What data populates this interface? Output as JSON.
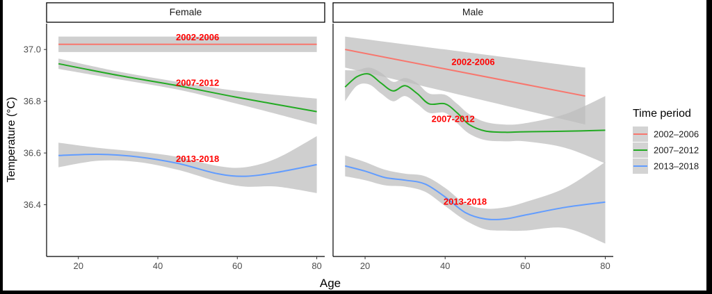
{
  "chart_data": {
    "type": "line",
    "title": "",
    "xlabel": "Age",
    "ylabel": "Temperature (°C)",
    "ylim": [
      36.2,
      37.1
    ],
    "y_ticks": [
      "36.4",
      "36.6",
      "36.8",
      "37.0"
    ],
    "x_ticks": [
      "20",
      "40",
      "60",
      "80"
    ],
    "grid": false,
    "legend": {
      "title": "Time period",
      "placement": "right",
      "entries": [
        {
          "label": "2002–2006",
          "color": "#F8766D"
        },
        {
          "label": "2007–2012",
          "color": "#22AA22"
        },
        {
          "label": "2013–2018",
          "color": "#619CFF"
        }
      ]
    },
    "panels": [
      {
        "strip": "Female",
        "xlim": [
          12,
          82
        ],
        "series": [
          {
            "period": "2002–2006",
            "color": "#F8766D",
            "label": "2002-2006",
            "label_pos": [
              50,
              37.035
            ],
            "x": [
              15,
              80
            ],
            "y": [
              37.02,
              37.02
            ],
            "upper": [
              37.05,
              37.05
            ],
            "lower": [
              36.99,
              36.99
            ]
          },
          {
            "period": "2007–2012",
            "color": "#22AA22",
            "label": "2007-2012",
            "label_pos": [
              50,
              36.86
            ],
            "x": [
              15,
              30,
              45,
              60,
              80
            ],
            "y": [
              36.945,
              36.9,
              36.86,
              36.815,
              36.76
            ],
            "upper": [
              36.965,
              36.915,
              36.875,
              36.84,
              36.81
            ],
            "lower": [
              36.925,
              36.885,
              36.845,
              36.79,
              36.71
            ]
          },
          {
            "period": "2013–2018",
            "color": "#619CFF",
            "label": "2013-2018",
            "label_pos": [
              50,
              36.565
            ],
            "x": [
              15,
              25,
              35,
              45,
              55,
              62,
              70,
              80
            ],
            "y": [
              36.59,
              36.595,
              36.585,
              36.56,
              36.52,
              36.51,
              36.525,
              36.555
            ],
            "upper": [
              36.64,
              36.62,
              36.605,
              36.585,
              36.55,
              36.545,
              36.58,
              36.665
            ],
            "lower": [
              36.545,
              36.57,
              36.565,
              36.535,
              36.49,
              36.47,
              36.47,
              36.445
            ]
          }
        ]
      },
      {
        "strip": "Male",
        "xlim": [
          12,
          82
        ],
        "series": [
          {
            "period": "2002–2006",
            "color": "#F8766D",
            "label": "2002-2006",
            "label_pos": [
              47,
              36.94
            ],
            "x": [
              15,
              75
            ],
            "y": [
              37.0,
              36.82
            ],
            "upper": [
              37.05,
              36.93
            ],
            "lower": [
              36.93,
              36.71
            ]
          },
          {
            "period": "2007–2012",
            "color": "#22AA22",
            "label": "2007-2012",
            "label_pos": [
              42,
              36.72
            ],
            "x": [
              15,
              18,
              21,
              24,
              27,
              30,
              33,
              36,
              40,
              43,
              46,
              50,
              55,
              60,
              70,
              80
            ],
            "y": [
              36.855,
              36.895,
              36.905,
              36.87,
              36.84,
              36.86,
              36.83,
              36.79,
              36.79,
              36.755,
              36.71,
              36.685,
              36.68,
              36.682,
              36.684,
              36.688
            ],
            "upper": [
              36.92,
              36.92,
              36.93,
              36.91,
              36.875,
              36.89,
              36.87,
              36.83,
              36.825,
              36.79,
              36.75,
              36.72,
              36.71,
              36.715,
              36.75,
              36.82
            ],
            "lower": [
              36.8,
              36.86,
              36.865,
              36.83,
              36.8,
              36.82,
              36.79,
              36.755,
              36.755,
              36.715,
              36.675,
              36.65,
              36.645,
              36.645,
              36.62,
              36.56
            ]
          },
          {
            "period": "2013–2018",
            "color": "#619CFF",
            "label": "2013-2018",
            "label_pos": [
              45,
              36.4
            ],
            "x": [
              15,
              20,
              25,
              30,
              35,
              40,
              45,
              50,
              55,
              60,
              70,
              80
            ],
            "y": [
              36.55,
              36.53,
              36.505,
              36.495,
              36.48,
              36.43,
              36.37,
              36.345,
              36.345,
              36.36,
              36.39,
              36.41
            ],
            "upper": [
              36.59,
              36.565,
              36.535,
              36.52,
              36.51,
              36.465,
              36.405,
              36.385,
              36.39,
              36.41,
              36.465,
              36.565
            ],
            "lower": [
              36.51,
              36.495,
              36.475,
              36.47,
              36.45,
              36.395,
              36.34,
              36.305,
              36.3,
              36.3,
              36.31,
              36.25
            ]
          }
        ]
      }
    ]
  }
}
